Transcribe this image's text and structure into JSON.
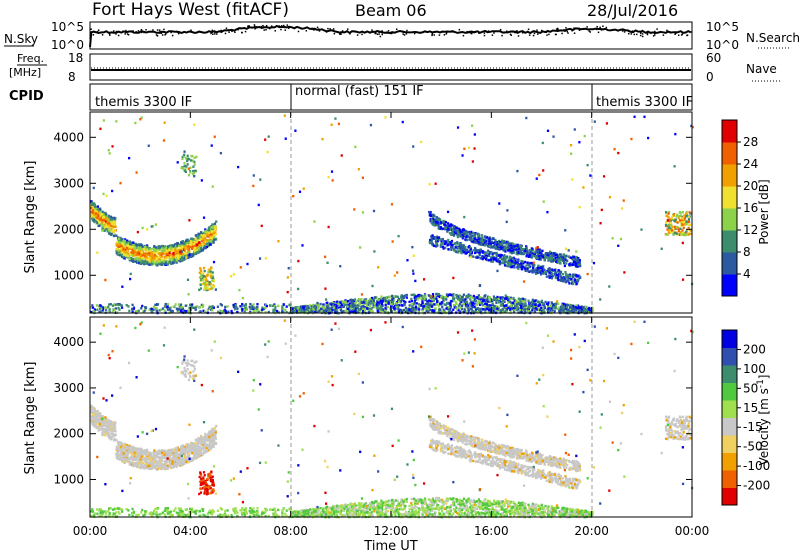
{
  "header": {
    "site": "Fort Hays West (fitACF)",
    "beam": "Beam 06",
    "date": "28/Jul/2016"
  },
  "strip_nsky": {
    "left_label": "N.Sky",
    "left_ticks": [
      "10^5",
      "10^0"
    ],
    "right_ticks": [
      "10^5",
      "10^0"
    ],
    "right_label": "N.Search"
  },
  "strip_freq": {
    "left_label_top": "Freq.",
    "left_label_unit": "[MHz]",
    "left_ticks": [
      "18",
      "8"
    ],
    "right_ticks": [
      "60",
      "0"
    ],
    "right_label": "Nave"
  },
  "cpid": {
    "label": "CPID",
    "segments": [
      {
        "text": "themis 3300 IF",
        "start_hour": 0
      },
      {
        "text": "normal (fast) 151 IF",
        "start_hour": 8
      },
      {
        "text": "themis 3300 IF",
        "start_hour": 20
      }
    ]
  },
  "colors": {
    "power": [
      "#0000ff",
      "#2c5aa0",
      "#3c8c6e",
      "#8cd24a",
      "#f0e030",
      "#f0a000",
      "#f06000",
      "#e00000"
    ],
    "velocity": [
      "#e00000",
      "#f06000",
      "#f0a000",
      "#f0d060",
      "#c8c8c8",
      "#a0e050",
      "#50c840",
      "#3c8c6e",
      "#3050b0",
      "#0000e0"
    ]
  },
  "chart_data": [
    {
      "type": "heatmap",
      "panel": "power",
      "ylabel": "Slant Range [km]",
      "ylim": [
        180,
        4550
      ],
      "y_ticks": [
        "1000",
        "2000",
        "3000",
        "4000"
      ],
      "xlim_hours": [
        0,
        24
      ],
      "colorbar_label": "Power [dB]",
      "colorbar_ticks": [
        "4",
        "8",
        "12",
        "16",
        "20",
        "24",
        "28"
      ],
      "colorbar_range": [
        0,
        32
      ]
    },
    {
      "type": "heatmap",
      "panel": "velocity",
      "ylabel": "Slant Range [km]",
      "ylim": [
        180,
        4550
      ],
      "y_ticks": [
        "1000",
        "2000",
        "3000",
        "4000"
      ],
      "xlim_hours": [
        0,
        24
      ],
      "colorbar_label": "Velocity [m s^-1]",
      "colorbar_ticks": [
        "-200",
        "-100",
        "-50",
        "-15",
        "15",
        "50",
        "100",
        "200"
      ]
    }
  ],
  "x_axis": {
    "ticks": [
      "00:00",
      "04:00",
      "08:00",
      "12:00",
      "16:00",
      "20:00",
      "00:00"
    ],
    "label": "Time UT"
  }
}
